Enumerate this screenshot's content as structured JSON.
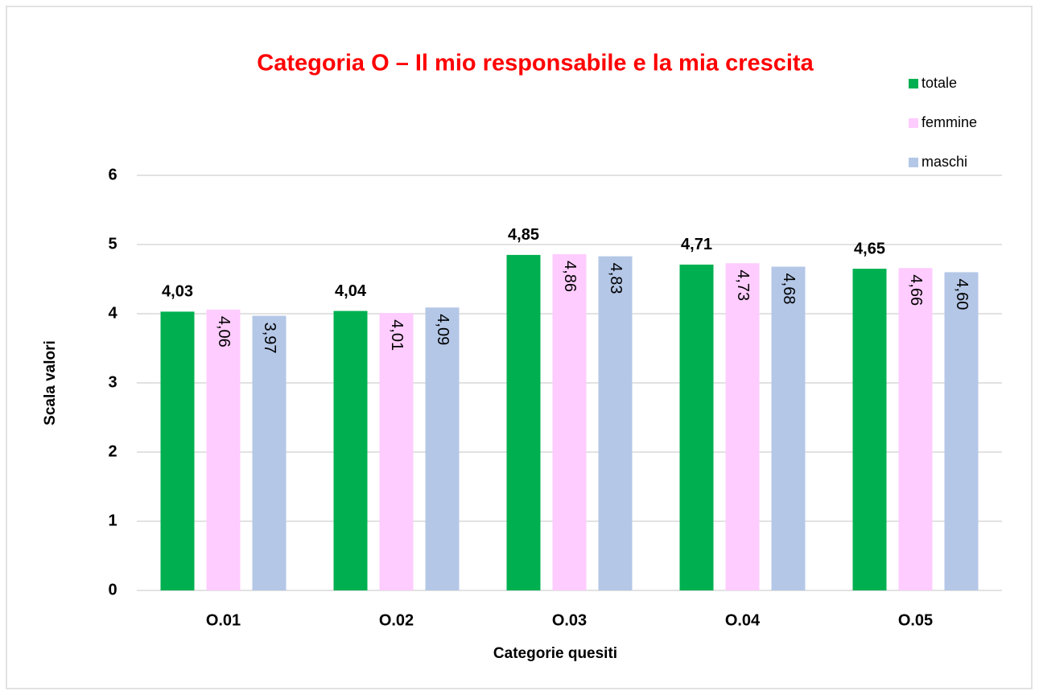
{
  "chart_data": {
    "type": "bar",
    "title": "Categoria O – Il mio responsabile e la mia crescita",
    "x_label": "Categorie quesiti",
    "y_label": "Scala valori",
    "categories": [
      "O.01",
      "O.02",
      "O.03",
      "O.04",
      "O.05"
    ],
    "series": [
      {
        "name": "totale",
        "color": "#00b050",
        "label_position": "outside_end",
        "values": [
          4.03,
          4.04,
          4.85,
          4.71,
          4.65
        ],
        "value_labels": [
          "4,03",
          "4,04",
          "4,85",
          "4,71",
          "4,65"
        ]
      },
      {
        "name": "femmine",
        "color": "#ffccff",
        "label_position": "inside_end",
        "values": [
          4.06,
          4.01,
          4.86,
          4.73,
          4.66
        ],
        "value_labels": [
          "4,06",
          "4,01",
          "4,86",
          "4,73",
          "4,66"
        ]
      },
      {
        "name": "maschi",
        "color": "#b4c7e7",
        "label_position": "inside_end",
        "values": [
          3.97,
          4.09,
          4.83,
          4.68,
          4.6
        ],
        "value_labels": [
          "3,97",
          "4,09",
          "4,83",
          "4,68",
          "4,60"
        ]
      }
    ],
    "ylim": [
      0,
      6
    ],
    "yticks": [
      0,
      1,
      2,
      3,
      4,
      5,
      6
    ],
    "grid": true,
    "legend": "top-right"
  }
}
